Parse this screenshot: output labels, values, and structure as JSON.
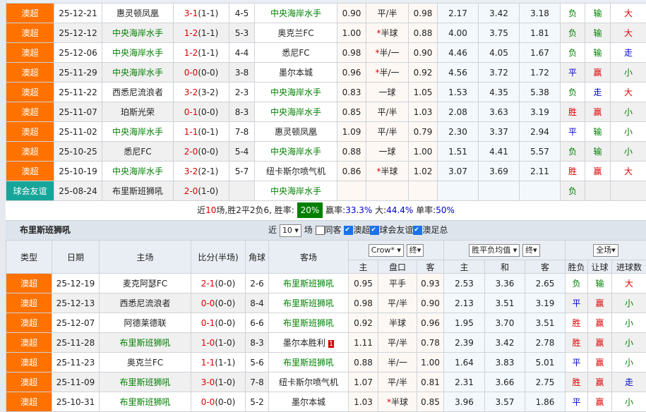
{
  "colors": {
    "league": "#ff7200",
    "friendly": "#17a59a",
    "team": "#008000",
    "win": "#d00",
    "draw": "#00c",
    "loss": "#008000"
  },
  "top": {
    "team": "中央海岸水手",
    "rows": [
      [
        "澳超",
        "25-12-21",
        "惠灵顿凤凰",
        "3-1",
        "(1-1)",
        "4-5",
        "中央海岸水手",
        "0.90",
        "平/半",
        "0.98",
        "2.17",
        "3.42",
        "3.18",
        "负",
        "输",
        "大"
      ],
      [
        "澳超",
        "25-12-12",
        "中央海岸水手",
        "1-2",
        "(1-1)",
        "5-3",
        "奥克兰FC",
        "1.00",
        "*半球",
        "0.88",
        "4.00",
        "3.75",
        "1.81",
        "负",
        "输",
        "大"
      ],
      [
        "澳超",
        "25-12-06",
        "中央海岸水手",
        "1-2",
        "(1-1)",
        "4-4",
        "悉尼FC",
        "0.98",
        "*半/一",
        "0.90",
        "4.46",
        "4.05",
        "1.67",
        "负",
        "输",
        "走"
      ],
      [
        "澳超",
        "25-11-29",
        "中央海岸水手",
        "0-0",
        "(0-0)",
        "3-8",
        "墨尔本城",
        "0.96",
        "*半/一",
        "0.92",
        "4.56",
        "3.72",
        "1.72",
        "平",
        "赢",
        "小"
      ],
      [
        "澳超",
        "25-11-22",
        "西悉尼流浪者",
        "3-2",
        "(3-2)",
        "2-3",
        "中央海岸水手",
        "0.83",
        "一球",
        "1.05",
        "1.53",
        "4.35",
        "5.38",
        "负",
        "走",
        "大"
      ],
      [
        "澳超",
        "25-11-07",
        "珀斯光荣",
        "0-1",
        "(0-0)",
        "8-3",
        "中央海岸水手",
        "0.85",
        "平/半",
        "1.03",
        "2.08",
        "3.63",
        "3.19",
        "胜",
        "赢",
        "小"
      ],
      [
        "澳超",
        "25-11-02",
        "中央海岸水手",
        "1-1",
        "(0-1)",
        "7-8",
        "惠灵顿凤凰",
        "1.09",
        "平/半",
        "0.79",
        "2.30",
        "3.37",
        "2.94",
        "平",
        "输",
        "小"
      ],
      [
        "澳超",
        "25-10-25",
        "悉尼FC",
        "2-0",
        "(0-0)",
        "5-4",
        "中央海岸水手",
        "0.88",
        "一球",
        "1.00",
        "1.51",
        "4.41",
        "5.57",
        "负",
        "输",
        "小"
      ],
      [
        "澳超",
        "25-10-19",
        "中央海岸水手",
        "3-2",
        "(2-1)",
        "5-7",
        "纽卡斯尔喷气机",
        "0.86",
        "*半球",
        "1.02",
        "3.07",
        "3.69",
        "2.11",
        "胜",
        "赢",
        "大"
      ],
      [
        "球会友谊",
        "25-08-24",
        "布里斯班狮吼",
        "2-0",
        "(1-0)",
        "",
        "中央海岸水手",
        "",
        "",
        "",
        "",
        "",
        "",
        "负",
        "",
        ""
      ]
    ]
  },
  "summary": {
    "a": "近",
    "n": "10",
    "b": "场,胜2平2负6, 胜率:",
    "rate": "20%",
    "c": "赢率:",
    "win_rate": "33.3%",
    "d": "大:",
    "big": "44.4%",
    "e": "单率:",
    "odd": "50%"
  },
  "section": {
    "title": "布里斯班狮吼",
    "near": "近",
    "count": "10",
    "unit": "场",
    "same_away": "同客",
    "f1": "澳超",
    "f2": "球会友谊",
    "f3": "澳足总"
  },
  "header": {
    "type": "类型",
    "date": "日期",
    "home": "主场",
    "score": "比分(半场)",
    "corner": "角球",
    "away": "客场",
    "company": "Crow*",
    "final1": "终",
    "avg": "胜平负均值",
    "final2": "终",
    "scope": "全场",
    "sub": [
      "主",
      "盘口",
      "客",
      "主",
      "和",
      "客",
      "胜负",
      "让球",
      "进球数"
    ]
  },
  "bottom": {
    "team": "布里斯班狮吼",
    "rows": [
      [
        "澳超",
        "25-12-19",
        "麦克阿瑟FC",
        "2-1",
        "(0-0)",
        "2-6",
        "布里斯班狮吼",
        "0.95",
        "平手",
        "0.93",
        "2.53",
        "3.36",
        "2.65",
        "负",
        "输",
        "大",
        ""
      ],
      [
        "澳超",
        "25-12-13",
        "西悉尼流浪者",
        "0-0",
        "(0-0)",
        "8-4",
        "布里斯班狮吼",
        "0.98",
        "平/半",
        "0.90",
        "2.13",
        "3.51",
        "3.19",
        "平",
        "赢",
        "小",
        ""
      ],
      [
        "澳超",
        "25-12-07",
        "阿德莱德联",
        "0-1",
        "(0-0)",
        "6-6",
        "布里斯班狮吼",
        "0.92",
        "半球",
        "0.96",
        "1.95",
        "3.70",
        "3.51",
        "胜",
        "赢",
        "小",
        ""
      ],
      [
        "澳超",
        "25-11-28",
        "布里斯班狮吼",
        "1-0",
        "(1-0)",
        "8-3",
        "墨尔本胜利",
        "1.11",
        "平/半",
        "0.78",
        "2.39",
        "3.42",
        "2.78",
        "胜",
        "赢",
        "小",
        "1"
      ],
      [
        "澳超",
        "25-11-23",
        "奥克兰FC",
        "1-1",
        "(1-1)",
        "5-6",
        "布里斯班狮吼",
        "0.88",
        "半/一",
        "1.00",
        "1.64",
        "3.83",
        "5.01",
        "平",
        "赢",
        "小",
        ""
      ],
      [
        "澳超",
        "25-11-09",
        "布里斯班狮吼",
        "3-0",
        "(1-0)",
        "7-8",
        "纽卡斯尔喷气机",
        "1.07",
        "平/半",
        "0.81",
        "2.31",
        "3.66",
        "2.75",
        "胜",
        "赢",
        "走",
        ""
      ],
      [
        "澳超",
        "25-10-31",
        "布里斯班狮吼",
        "0-0",
        "(0-0)",
        "5-2",
        "墨尔本城",
        "1.03",
        "*半球",
        "0.85",
        "3.96",
        "3.57",
        "1.86",
        "平",
        "赢",
        "小",
        ""
      ]
    ]
  }
}
